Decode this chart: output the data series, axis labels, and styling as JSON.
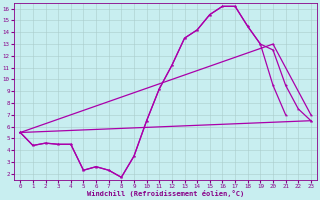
{
  "xlabel": "Windchill (Refroidissement éolien,°C)",
  "background_color": "#c8eef0",
  "grid_color": "#aacccc",
  "line_color": "#aa00aa",
  "xlim": [
    -0.5,
    23.5
  ],
  "ylim": [
    1.5,
    16.5
  ],
  "xticks": [
    0,
    1,
    2,
    3,
    4,
    5,
    6,
    7,
    8,
    9,
    10,
    11,
    12,
    13,
    14,
    15,
    16,
    17,
    18,
    19,
    20,
    21,
    22,
    23
  ],
  "yticks": [
    2,
    3,
    4,
    5,
    6,
    7,
    8,
    9,
    10,
    11,
    12,
    13,
    14,
    15,
    16
  ],
  "line1_x": [
    0,
    1,
    2,
    3,
    4,
    5,
    6,
    7,
    8,
    9,
    10,
    11,
    12,
    13,
    14,
    15,
    16,
    17,
    18,
    19,
    20,
    21
  ],
  "line1_y": [
    5.5,
    4.4,
    4.6,
    4.5,
    4.5,
    2.3,
    2.6,
    2.3,
    1.7,
    3.5,
    6.5,
    9.2,
    11.2,
    13.5,
    14.2,
    15.5,
    16.2,
    16.2,
    14.5,
    13.0,
    9.5,
    7.0
  ],
  "line2_x": [
    0,
    1,
    2,
    3,
    4,
    5,
    6,
    7,
    8,
    9,
    10,
    11,
    12,
    13,
    14,
    15,
    16,
    17,
    18,
    19,
    20,
    21,
    22,
    23
  ],
  "line2_y": [
    5.5,
    4.4,
    4.6,
    4.5,
    4.5,
    2.3,
    2.6,
    2.3,
    1.7,
    3.5,
    6.5,
    9.2,
    11.2,
    13.5,
    14.2,
    15.5,
    16.2,
    16.2,
    14.5,
    13.0,
    12.5,
    9.5,
    7.5,
    6.5
  ],
  "line3_x": [
    0,
    23
  ],
  "line3_y": [
    5.5,
    6.5
  ],
  "line4_x": [
    0,
    20,
    23
  ],
  "line4_y": [
    5.5,
    13.0,
    7.0
  ]
}
